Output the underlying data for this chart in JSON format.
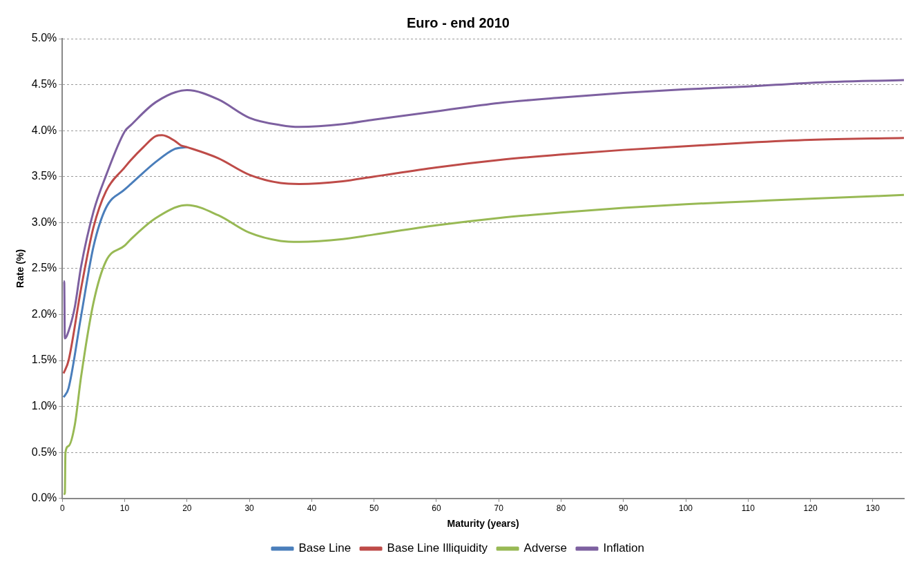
{
  "chart_data": {
    "type": "line",
    "title": "Euro - end 2010",
    "xlabel": "Maturity (years)",
    "ylabel": "Rate (%)",
    "xlim": [
      0,
      135
    ],
    "xticks": [
      0,
      10,
      20,
      30,
      40,
      50,
      60,
      70,
      80,
      90,
      100,
      110,
      120,
      130
    ],
    "ylim": [
      0,
      5
    ],
    "yticks": [
      {
        "value": 0,
        "label": "0.0%"
      },
      {
        "value": 0.5,
        "label": "0.5%"
      },
      {
        "value": 1,
        "label": "1.0%"
      },
      {
        "value": 1.5,
        "label": "1.5%"
      },
      {
        "value": 2,
        "label": "2.0%"
      },
      {
        "value": 2.5,
        "label": "2.5%"
      },
      {
        "value": 3,
        "label": "3.0%"
      },
      {
        "value": 3.5,
        "label": "3.5%"
      },
      {
        "value": 4,
        "label": "4.0%"
      },
      {
        "value": 4.5,
        "label": "4.5%"
      },
      {
        "value": 5,
        "label": "5.0%"
      }
    ],
    "grid": "y",
    "legend": "bottom",
    "marker": "none",
    "line_style": "solid",
    "series": [
      {
        "name": "Base Line",
        "color": "#4a7ebb",
        "x": [
          0.2,
          1,
          3,
          5,
          7,
          10,
          11,
          15,
          18,
          20
        ],
        "values": [
          1.1,
          1.2,
          1.98,
          2.74,
          3.16,
          3.36,
          3.42,
          3.66,
          3.8,
          3.82
        ]
      },
      {
        "name": "Base Line Illiquidity",
        "color": "#be4b48",
        "x": [
          0.2,
          1,
          3,
          5,
          7,
          10,
          11,
          13,
          15,
          16,
          18,
          19,
          20,
          25,
          30,
          35,
          38,
          45,
          50,
          60,
          70,
          80,
          90,
          100,
          110,
          120,
          135
        ],
        "values": [
          1.36,
          1.5,
          2.28,
          2.95,
          3.34,
          3.6,
          3.68,
          3.82,
          3.94,
          3.95,
          3.89,
          3.84,
          3.82,
          3.7,
          3.52,
          3.43,
          3.42,
          3.45,
          3.5,
          3.6,
          3.68,
          3.74,
          3.79,
          3.83,
          3.87,
          3.9,
          3.92
        ]
      },
      {
        "name": "Adverse",
        "color": "#98b954",
        "x": [
          0.2,
          0.4,
          0.5,
          1,
          2,
          3,
          5,
          7,
          10,
          11,
          15,
          20,
          25,
          30,
          35,
          38,
          45,
          50,
          60,
          70,
          80,
          90,
          100,
          110,
          120,
          135
        ],
        "values": [
          0.05,
          0.05,
          0.5,
          0.57,
          0.8,
          1.32,
          2.13,
          2.58,
          2.75,
          2.82,
          3.05,
          3.19,
          3.08,
          2.89,
          2.8,
          2.79,
          2.82,
          2.87,
          2.97,
          3.05,
          3.11,
          3.16,
          3.2,
          3.23,
          3.26,
          3.3
        ]
      },
      {
        "name": "Inflation",
        "color": "#7d60a0",
        "x": [
          0.2,
          0.3,
          0.4,
          1,
          2,
          3,
          5,
          7,
          10,
          11,
          15,
          20,
          25,
          30,
          35,
          38,
          45,
          50,
          60,
          70,
          80,
          90,
          100,
          110,
          120,
          135
        ],
        "values": [
          2.36,
          2.36,
          1.74,
          1.82,
          2.08,
          2.52,
          3.12,
          3.51,
          3.99,
          4.06,
          4.31,
          4.44,
          4.34,
          4.14,
          4.06,
          4.04,
          4.07,
          4.12,
          4.21,
          4.3,
          4.36,
          4.41,
          4.45,
          4.48,
          4.52,
          4.55
        ]
      }
    ]
  }
}
